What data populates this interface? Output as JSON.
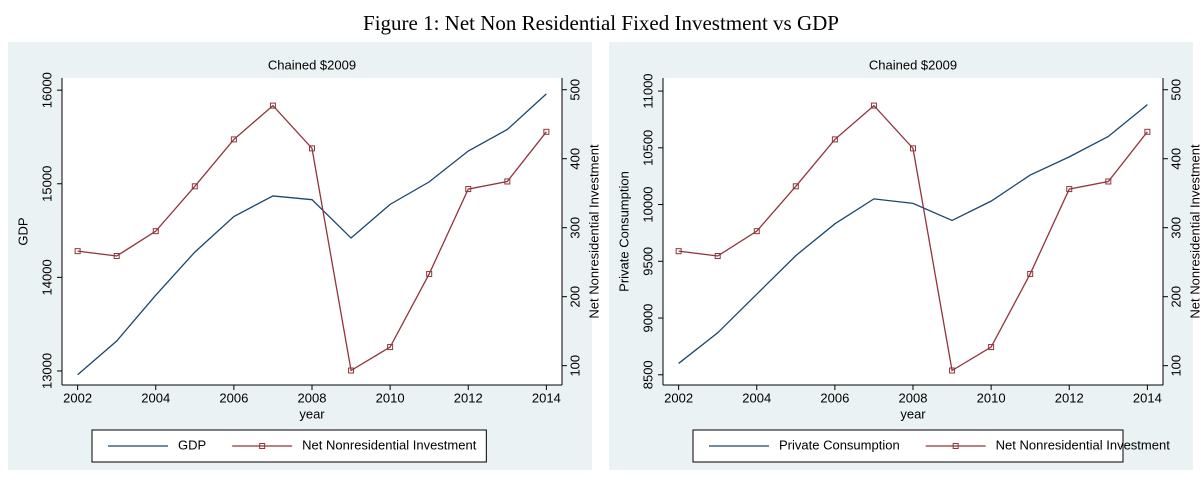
{
  "title": "Figure 1: Net Non Residential Fixed Investment vs GDP",
  "chart_data": [
    {
      "type": "line",
      "title": "Chained $2009",
      "xlabel": "year",
      "ylabel": "GDP",
      "y2label": "Net Nonresidential Investment",
      "x": [
        2002,
        2003,
        2004,
        2005,
        2006,
        2007,
        2008,
        2009,
        2010,
        2011,
        2012,
        2013,
        2014
      ],
      "series": [
        {
          "name": "GDP",
          "color": "#1a476f",
          "values": [
            12960,
            13320,
            13810,
            14270,
            14650,
            14870,
            14830,
            14420,
            14780,
            15020,
            15350,
            15580,
            15960
          ]
        },
        {
          "name": "Net Nonresidential Investment",
          "color": "#90353b",
          "axis": "y2",
          "marker": "square",
          "values": [
            266,
            259,
            295,
            360,
            428,
            477,
            415,
            93,
            127,
            233,
            356,
            367,
            439
          ]
        }
      ],
      "xlim": [
        2001.6,
        2014.4
      ],
      "xticks": [
        2002,
        2004,
        2006,
        2008,
        2010,
        2012,
        2014
      ],
      "ylim": [
        12850,
        16130
      ],
      "yticks": [
        13000,
        14000,
        15000,
        16000
      ],
      "y2lim": [
        72,
        517
      ],
      "y2ticks": [
        100,
        200,
        300,
        400,
        500
      ],
      "legend": "bottom"
    },
    {
      "type": "line",
      "title": "Chained $2009",
      "xlabel": "year",
      "ylabel": "Private Consumption",
      "y2label": "Net Nonresidential Investment",
      "x": [
        2002,
        2003,
        2004,
        2005,
        2006,
        2007,
        2008,
        2009,
        2010,
        2011,
        2012,
        2013,
        2014
      ],
      "series": [
        {
          "name": "Private Consumption",
          "color": "#1a476f",
          "values": [
            8600,
            8870,
            9210,
            9550,
            9830,
            10050,
            10010,
            9860,
            10030,
            10260,
            10420,
            10600,
            10880
          ]
        },
        {
          "name": "Net Nonresidential Investment",
          "color": "#90353b",
          "axis": "y2",
          "marker": "square",
          "values": [
            266,
            259,
            295,
            360,
            428,
            477,
            415,
            93,
            127,
            233,
            356,
            367,
            439
          ]
        }
      ],
      "xlim": [
        2001.6,
        2014.4
      ],
      "xticks": [
        2002,
        2004,
        2006,
        2008,
        2010,
        2012,
        2014
      ],
      "ylim": [
        8410,
        11115
      ],
      "yticks": [
        8500,
        9000,
        9500,
        10000,
        10500,
        11000
      ],
      "y2lim": [
        72,
        517
      ],
      "y2ticks": [
        100,
        200,
        300,
        400,
        500
      ],
      "legend": "bottom"
    }
  ]
}
